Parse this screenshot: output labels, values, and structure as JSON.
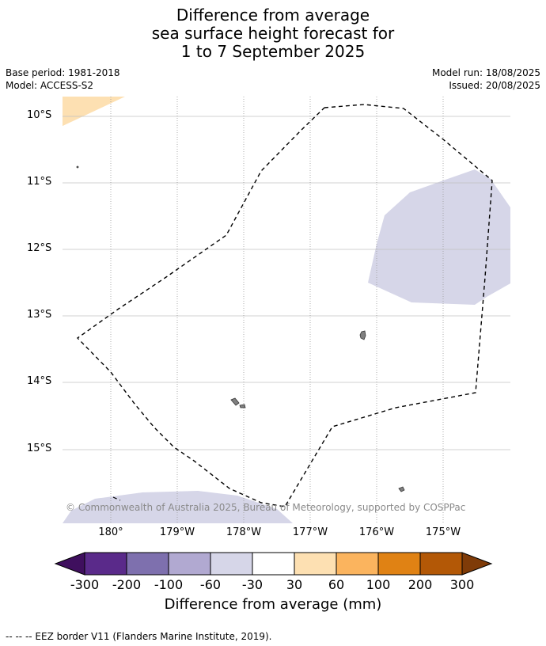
{
  "header": {
    "title_line1": "Difference from average",
    "title_line2": "sea surface height forecast for",
    "title_line3": "1 to 7 September 2025",
    "base_period": "Base period: 1981-2018",
    "model": "Model: ACCESS-S2",
    "model_run": "Model run: 18/08/2025",
    "issued": "Issued: 20/08/2025"
  },
  "map": {
    "latitude_labels": [
      "10°S",
      "11°S",
      "12°S",
      "13°S",
      "14°S",
      "15°S"
    ],
    "longitude_labels": [
      "180°",
      "179°W",
      "178°W",
      "177°W",
      "176°W",
      "175°W"
    ],
    "copyright": "© Commonwealth of Australia 2025, Bureau of Meteorology, supported by COSPPac",
    "colors": {
      "land": "#808080",
      "anomaly_light_blue": "#d6d6e8",
      "anomaly_light_orange": "#fde0b2",
      "eez_border": "#000000",
      "gridline": "#c0c0c0"
    }
  },
  "colorbar": {
    "labels": [
      "-300",
      "-200",
      "-100",
      "-60",
      "-30",
      "30",
      "60",
      "100",
      "200",
      "300"
    ],
    "colors": [
      "#3f0f5e",
      "#5a2a8a",
      "#7e70ae",
      "#b1a9d1",
      "#d6d6e8",
      "#ffffff",
      "#fde0b2",
      "#fbb45e",
      "#e08214",
      "#b35806",
      "#7f3b08"
    ],
    "title": "Difference from average (mm)"
  },
  "footnote": "--  --  -- EEZ border V11 (Flanders Marine Institute, 2019)."
}
